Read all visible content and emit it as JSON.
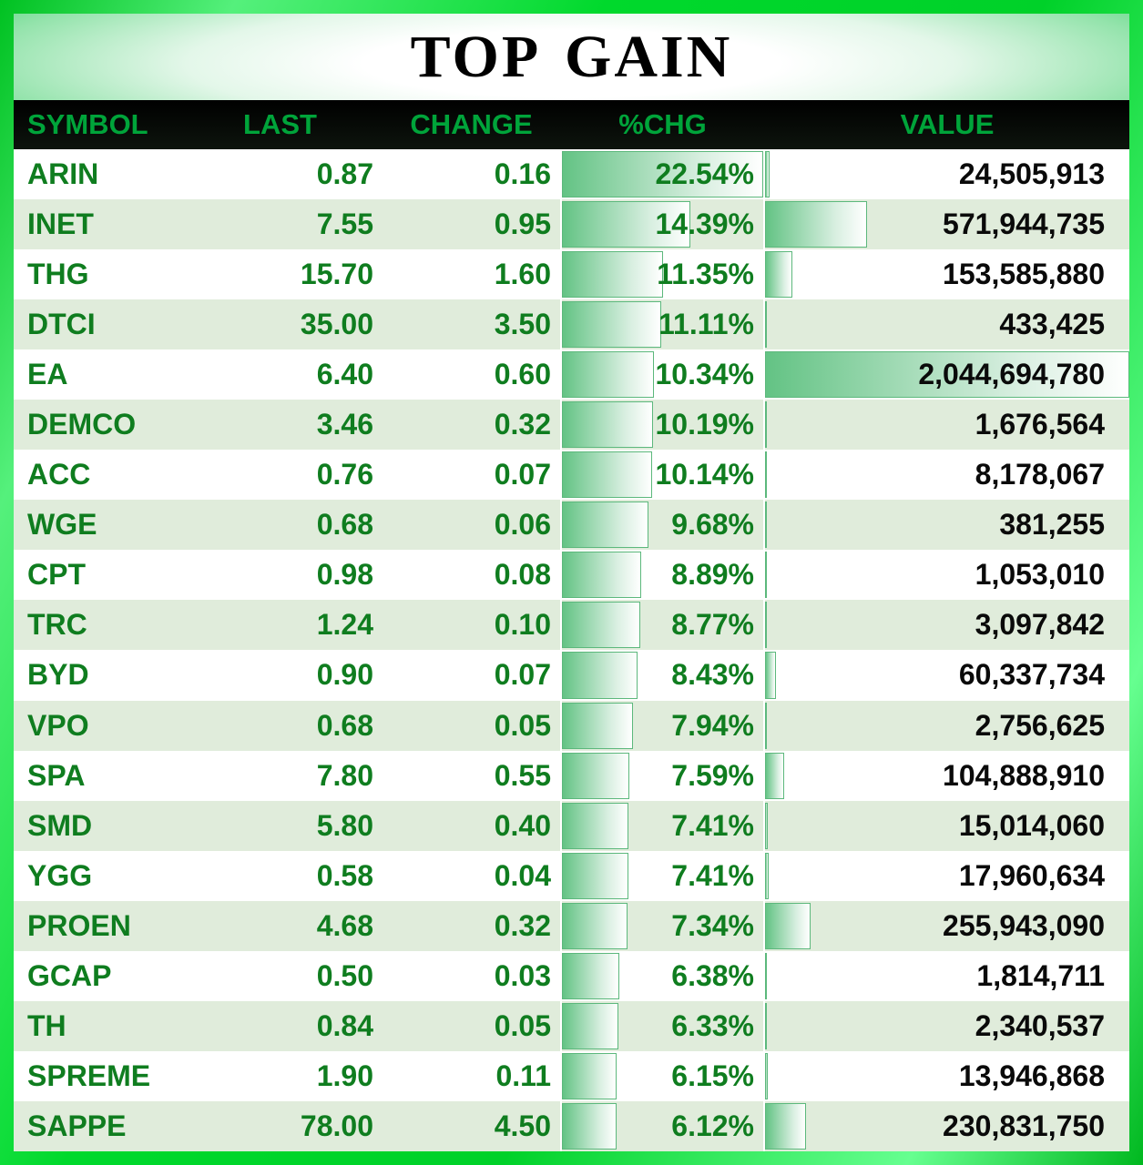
{
  "title": "TOP GAIN",
  "colors": {
    "header_text": "#00a43a",
    "green_text": "#0f7d1f",
    "value_text": "#0a0a0a",
    "row_alt": "#e0ecdb",
    "bar_green": "#63c384",
    "bar_border": "#5cb87c",
    "frame_green": "#00d129"
  },
  "chart_data": {
    "type": "table",
    "title": "TOP GAIN",
    "columns": [
      "SYMBOL",
      "LAST",
      "CHANGE",
      "%CHG",
      "VALUE"
    ],
    "bars": {
      "pct_max": 22.54,
      "value_max": 2044694780,
      "note": "gradient green data bars in %CHG and VALUE columns, anchored left"
    },
    "rows": [
      {
        "symbol": "ARIN",
        "last": "0.87",
        "change": "0.16",
        "pct": "22.54%",
        "pct_num": 22.54,
        "value": "24,505,913",
        "value_num": 24505913
      },
      {
        "symbol": "INET",
        "last": "7.55",
        "change": "0.95",
        "pct": "14.39%",
        "pct_num": 14.39,
        "value": "571,944,735",
        "value_num": 571944735
      },
      {
        "symbol": "THG",
        "last": "15.70",
        "change": "1.60",
        "pct": "11.35%",
        "pct_num": 11.35,
        "value": "153,585,880",
        "value_num": 153585880
      },
      {
        "symbol": "DTCI",
        "last": "35.00",
        "change": "3.50",
        "pct": "11.11%",
        "pct_num": 11.11,
        "value": "433,425",
        "value_num": 433425
      },
      {
        "symbol": "EA",
        "last": "6.40",
        "change": "0.60",
        "pct": "10.34%",
        "pct_num": 10.34,
        "value": "2,044,694,780",
        "value_num": 2044694780
      },
      {
        "symbol": "DEMCO",
        "last": "3.46",
        "change": "0.32",
        "pct": "10.19%",
        "pct_num": 10.19,
        "value": "1,676,564",
        "value_num": 1676564
      },
      {
        "symbol": "ACC",
        "last": "0.76",
        "change": "0.07",
        "pct": "10.14%",
        "pct_num": 10.14,
        "value": "8,178,067",
        "value_num": 8178067
      },
      {
        "symbol": "WGE",
        "last": "0.68",
        "change": "0.06",
        "pct": "9.68%",
        "pct_num": 9.68,
        "value": "381,255",
        "value_num": 381255
      },
      {
        "symbol": "CPT",
        "last": "0.98",
        "change": "0.08",
        "pct": "8.89%",
        "pct_num": 8.89,
        "value": "1,053,010",
        "value_num": 1053010
      },
      {
        "symbol": "TRC",
        "last": "1.24",
        "change": "0.10",
        "pct": "8.77%",
        "pct_num": 8.77,
        "value": "3,097,842",
        "value_num": 3097842
      },
      {
        "symbol": "BYD",
        "last": "0.90",
        "change": "0.07",
        "pct": "8.43%",
        "pct_num": 8.43,
        "value": "60,337,734",
        "value_num": 60337734
      },
      {
        "symbol": "VPO",
        "last": "0.68",
        "change": "0.05",
        "pct": "7.94%",
        "pct_num": 7.94,
        "value": "2,756,625",
        "value_num": 2756625
      },
      {
        "symbol": "SPA",
        "last": "7.80",
        "change": "0.55",
        "pct": "7.59%",
        "pct_num": 7.59,
        "value": "104,888,910",
        "value_num": 104888910
      },
      {
        "symbol": "SMD",
        "last": "5.80",
        "change": "0.40",
        "pct": "7.41%",
        "pct_num": 7.41,
        "value": "15,014,060",
        "value_num": 15014060
      },
      {
        "symbol": "YGG",
        "last": "0.58",
        "change": "0.04",
        "pct": "7.41%",
        "pct_num": 7.41,
        "value": "17,960,634",
        "value_num": 17960634
      },
      {
        "symbol": "PROEN",
        "last": "4.68",
        "change": "0.32",
        "pct": "7.34%",
        "pct_num": 7.34,
        "value": "255,943,090",
        "value_num": 255943090
      },
      {
        "symbol": "GCAP",
        "last": "0.50",
        "change": "0.03",
        "pct": "6.38%",
        "pct_num": 6.38,
        "value": "1,814,711",
        "value_num": 1814711
      },
      {
        "symbol": "TH",
        "last": "0.84",
        "change": "0.05",
        "pct": "6.33%",
        "pct_num": 6.33,
        "value": "2,340,537",
        "value_num": 2340537
      },
      {
        "symbol": "SPREME",
        "last": "1.90",
        "change": "0.11",
        "pct": "6.15%",
        "pct_num": 6.15,
        "value": "13,946,868",
        "value_num": 13946868
      },
      {
        "symbol": "SAPPE",
        "last": "78.00",
        "change": "4.50",
        "pct": "6.12%",
        "pct_num": 6.12,
        "value": "230,831,750",
        "value_num": 230831750
      }
    ]
  }
}
